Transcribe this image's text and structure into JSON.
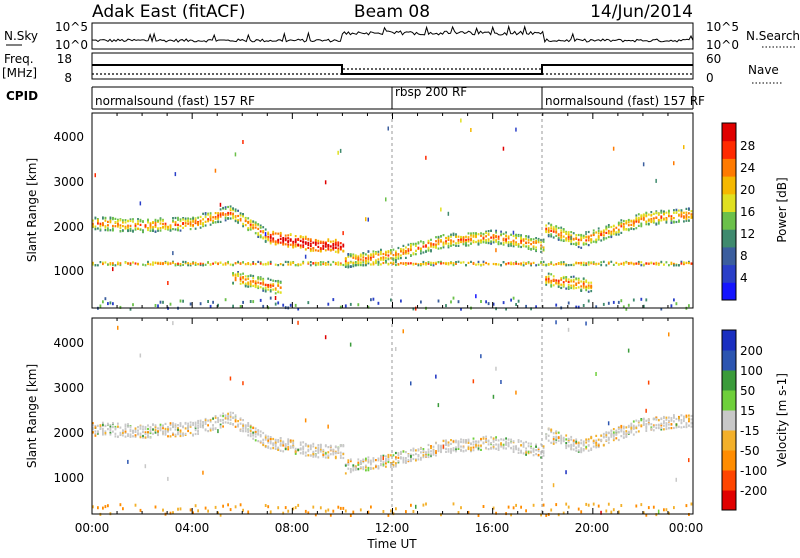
{
  "header": {
    "site": "Adak East (fitACF)",
    "beam": "Beam 08",
    "date": "14/Jun/2014"
  },
  "strips": {
    "nsky_label": "N.Sky",
    "nsearch_label": "N.Search",
    "nsky_ticks": [
      "10^5",
      "10^0"
    ],
    "nsearch_ticks": [
      "10^5",
      "10^0"
    ],
    "freq_label_1": "Freq.",
    "freq_label_2": "[MHz]",
    "freq_ticks": [
      "18",
      "8"
    ],
    "nave_label": "Nave",
    "nave_ticks": [
      "60",
      "0"
    ],
    "cpid_label": "CPID",
    "cpid_segments": [
      "normalsound (fast) 157 RF",
      "rbsp 200 RF",
      "normalsound (fast) 157 RF"
    ]
  },
  "colors": {
    "power": [
      "#1515ff",
      "#2a3fc8",
      "#3b5e9e",
      "#3f8a6e",
      "#6bc04a",
      "#e0e020",
      "#f5b800",
      "#ff7a00",
      "#ff2a00",
      "#e00000"
    ],
    "velocity": [
      "#e00000",
      "#ff4500",
      "#ff8c00",
      "#f3b02a",
      "#c8c8c8",
      "#6ecf3a",
      "#3a9b3a",
      "#2c55b0",
      "#1a2fc0"
    ]
  },
  "chart_data": [
    {
      "type": "heatmap",
      "name": "power-panel",
      "xlabel": "",
      "ylabel": "Slant Range [km]",
      "x_ticks": [
        "00:00",
        "04:00",
        "08:00",
        "12:00",
        "16:00",
        "20:00",
        "00:00"
      ],
      "y_ticks": [
        "1000",
        "2000",
        "3000",
        "4000"
      ],
      "xlim_hours": [
        0,
        24
      ],
      "ylim_km": [
        180,
        4550
      ],
      "colorbar": {
        "label": "Power [dB]",
        "ticks": [
          "28",
          "24",
          "20",
          "16",
          "12",
          "8",
          "4"
        ],
        "range": [
          0,
          32
        ]
      },
      "echo_bands": [
        {
          "x": [
            0,
            2,
            4,
            5.5,
            7,
            9,
            10
          ],
          "y": [
            2100,
            2050,
            2100,
            2350,
            1800,
            1600,
            1600
          ]
        },
        {
          "x": [
            10,
            12,
            14,
            16,
            18
          ],
          "y": [
            1250,
            1400,
            1700,
            1800,
            1600
          ]
        },
        {
          "x": [
            18,
            19.5,
            22,
            24
          ],
          "y": [
            2000,
            1700,
            2200,
            2300
          ]
        },
        {
          "x": [
            5.5,
            7.5
          ],
          "y": [
            900,
            650
          ]
        },
        {
          "x": [
            18,
            20
          ],
          "y": [
            850,
            700
          ]
        },
        {
          "x": [
            0,
            24
          ],
          "y": [
            1200,
            1200
          ]
        }
      ]
    },
    {
      "type": "heatmap",
      "name": "velocity-panel",
      "xlabel": "Time UT",
      "ylabel": "Slant Range [km]",
      "x_ticks": [
        "00:00",
        "04:00",
        "08:00",
        "12:00",
        "16:00",
        "20:00",
        "00:00"
      ],
      "y_ticks": [
        "1000",
        "2000",
        "3000",
        "4000"
      ],
      "xlim_hours": [
        0,
        24
      ],
      "ylim_km": [
        180,
        4550
      ],
      "colorbar": {
        "label": "Velocity [m s-1]",
        "ticks": [
          "200",
          "100",
          "50",
          "15",
          "-15",
          "-50",
          "-100",
          "-200"
        ],
        "range": [
          -250,
          250
        ]
      },
      "echo_bands": [
        {
          "x": [
            0,
            2,
            4,
            5.5,
            7,
            9,
            10
          ],
          "y": [
            2100,
            2050,
            2100,
            2350,
            1800,
            1600,
            1600
          ]
        },
        {
          "x": [
            10,
            12,
            14,
            16,
            18
          ],
          "y": [
            1250,
            1400,
            1700,
            1800,
            1600
          ]
        },
        {
          "x": [
            18,
            19.5,
            22,
            24
          ],
          "y": [
            2000,
            1700,
            2200,
            2300
          ]
        }
      ]
    }
  ]
}
